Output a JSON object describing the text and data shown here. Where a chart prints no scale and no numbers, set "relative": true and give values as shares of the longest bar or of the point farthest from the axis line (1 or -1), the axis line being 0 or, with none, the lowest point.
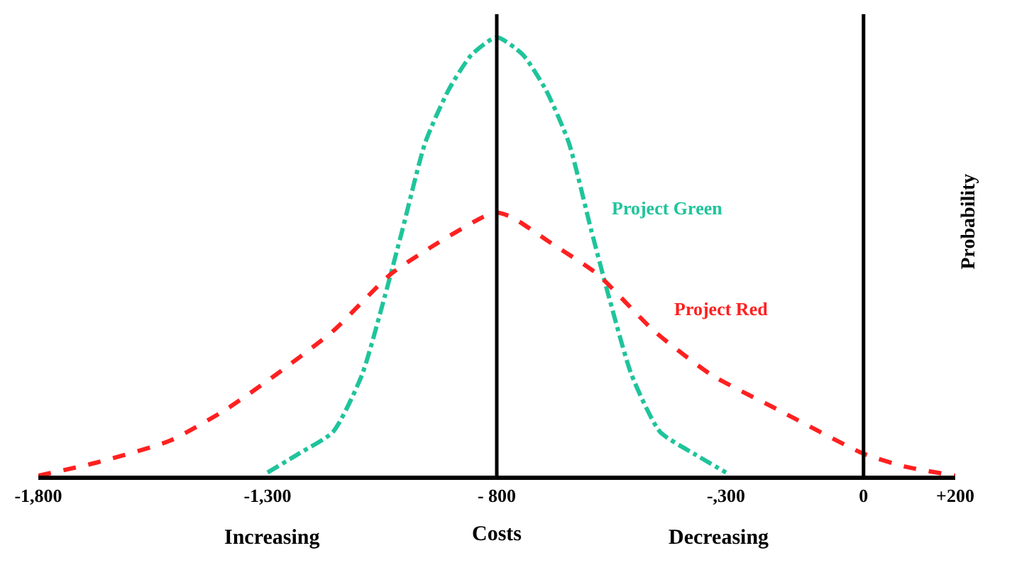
{
  "chart_data": {
    "type": "line",
    "relative": true,
    "xlabel": "Costs",
    "ylabel": "Probability",
    "legend": false,
    "marker": "none",
    "xlim": [
      -1800,
      200
    ],
    "xticks": [
      {
        "value": -1800,
        "label": "-1,800"
      },
      {
        "value": -1300,
        "label": "-1,300"
      },
      {
        "value": -800,
        "label": "- 800"
      },
      {
        "value": -300,
        "label": "-,300"
      },
      0,
      {
        "value": 200,
        "label": "+200"
      }
    ],
    "series": [
      {
        "name": "Project Green",
        "color": "#1fc49b",
        "line_style": "dashdot",
        "x": [
          -1300,
          -1232,
          -1157,
          -1094,
          -1044,
          -1006,
          -956,
          -905,
          -855,
          -800,
          -743,
          -693,
          -643,
          -594,
          -556,
          -506,
          -444,
          -370,
          -300
        ],
        "values": [
          0.007,
          0.05,
          0.1,
          0.23,
          0.41,
          0.56,
          0.76,
          0.88,
          0.96,
          1,
          0.96,
          0.88,
          0.76,
          0.56,
          0.41,
          0.23,
          0.1,
          0.05,
          0.007
        ]
      },
      {
        "name": "Project Red",
        "color": "#ff2020",
        "line_style": "dashed",
        "x": [
          -1800,
          -1672,
          -1512,
          -1392,
          -1282,
          -1157,
          -1031,
          -930,
          -830,
          -800,
          -768,
          -681,
          -581,
          -457,
          -332,
          -186,
          0,
          93,
          200
        ],
        "values": [
          0,
          0.03,
          0.08,
          0.15,
          0.23,
          0.33,
          0.46,
          0.53,
          0.59,
          0.6,
          0.59,
          0.53,
          0.46,
          0.33,
          0.23,
          0.15,
          0.05,
          0.02,
          0
        ]
      }
    ],
    "ref_lines": [
      {
        "axis": "x",
        "value": -800,
        "color": "#000000"
      },
      {
        "axis": "x",
        "value": 0,
        "color": "#000000"
      }
    ],
    "annotations": [
      "Increasing",
      "Decreasing"
    ]
  }
}
